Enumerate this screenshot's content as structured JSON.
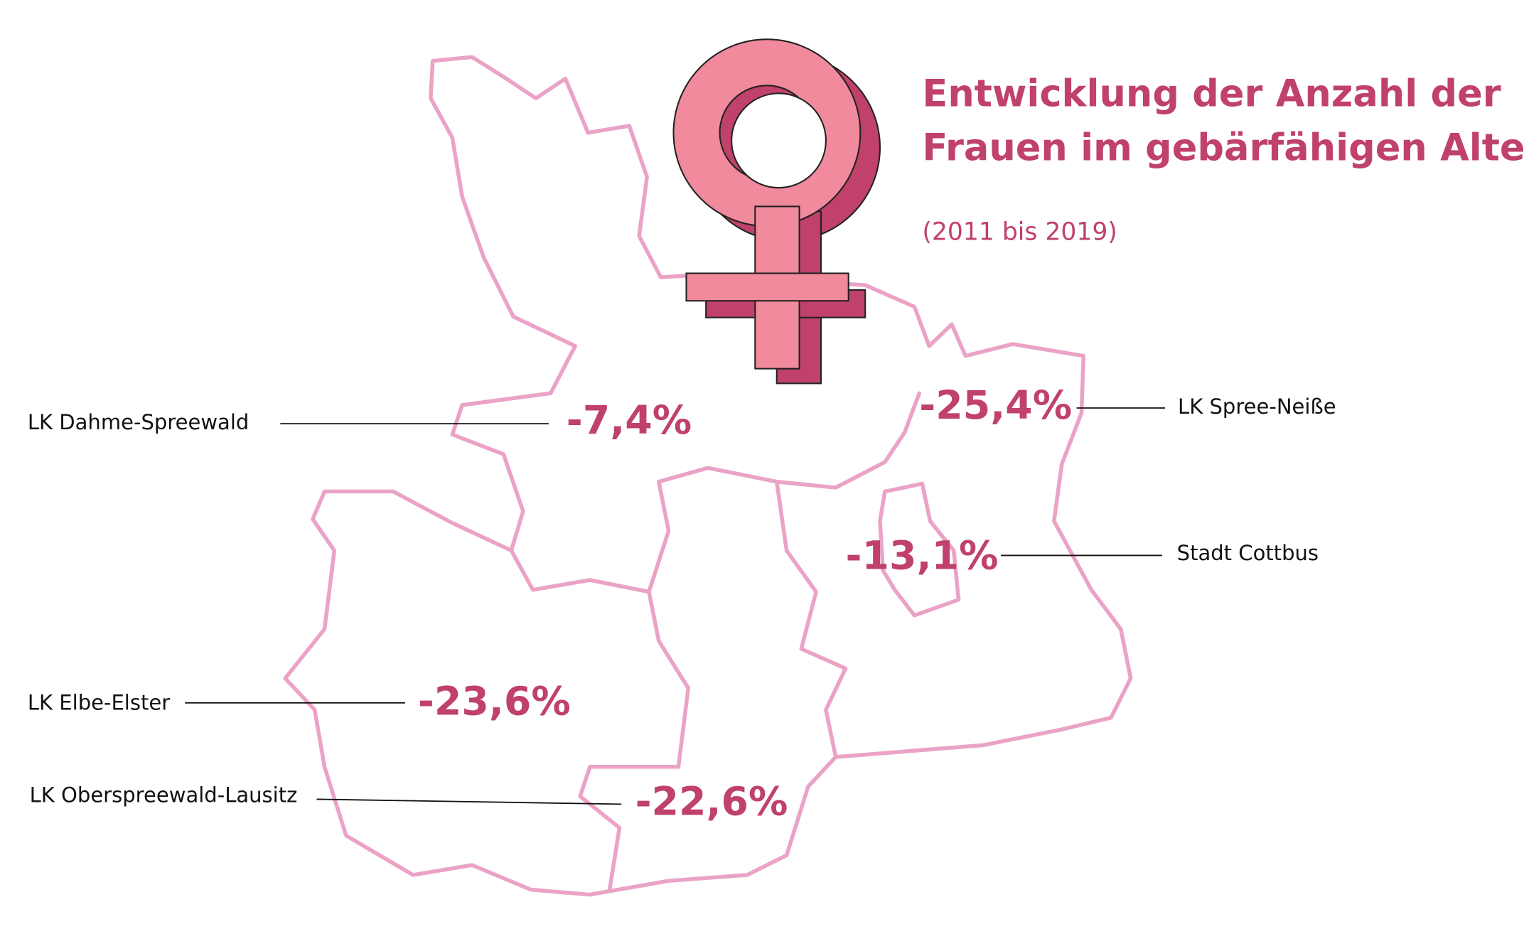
{
  "title": {
    "lines": [
      "Entwicklung der Anzahl der",
      "Frauen im gebärfähigen Alter"
    ]
  },
  "subtitle": "(2011 bis 2019)",
  "regions": [
    {
      "name": "LK Dahme-Spreewald",
      "value": "-7,4%"
    },
    {
      "name": "LK Spree-Neiße",
      "value": "-25,4%"
    },
    {
      "name": "Stadt Cottbus",
      "value": "-13,1%"
    },
    {
      "name": "LK Elbe-Elster",
      "value": "-23,6%"
    },
    {
      "name": "LK Oberspreewald-Lausitz",
      "value": "-22,6%"
    }
  ]
}
